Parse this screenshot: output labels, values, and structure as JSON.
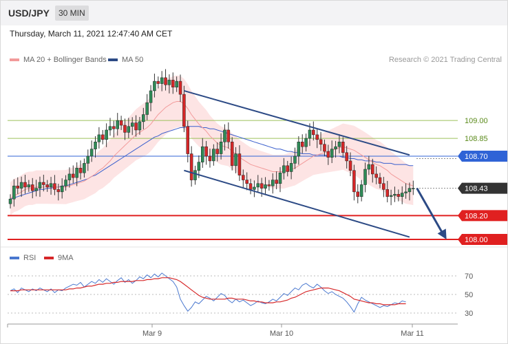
{
  "header": {
    "symbol": "USD/JPY",
    "period": "30 MIN",
    "datetime": "Thursday, March 11, 2021 12:47:40 AM CET"
  },
  "legend": {
    "ma20_label": "MA 20 + Bollinger Bands",
    "ma50_label": "MA 50",
    "credit": "Research © 2021 Trading Central"
  },
  "rsi_legend": {
    "rsi_label": "RSI",
    "ma_label": "9MA"
  },
  "colors": {
    "up": "#2e8b57",
    "down": "#d62728",
    "ma20": "#f29a9a",
    "ma50": "#3a5fcd",
    "bollinger": "#fde4e4",
    "channel": "#2c4a85",
    "support": "#e02020",
    "resistance": "#9cc05a",
    "pivot": "#2f63d6",
    "price_tag": "#333333",
    "rsi": "#4a78cf",
    "rsi_ma": "#d62728"
  },
  "chart_data": [
    {
      "type": "candlestick",
      "title": "USD/JPY 30 MIN",
      "x_ticks": [
        "Mar 9",
        "Mar 10",
        "Mar 11"
      ],
      "ylim": [
        107.8,
        109.5
      ],
      "levels": [
        {
          "label": "109.00",
          "value": 109.0,
          "kind": "resistance"
        },
        {
          "label": "108.85",
          "value": 108.85,
          "kind": "resistance"
        },
        {
          "label": "108.70",
          "value": 108.7,
          "kind": "pivot"
        },
        {
          "label": "108.43",
          "value": 108.43,
          "kind": "last_price"
        },
        {
          "label": "108.20",
          "value": 108.2,
          "kind": "support"
        },
        {
          "label": "108.00",
          "value": 108.0,
          "kind": "support"
        }
      ],
      "closes": [
        108.34,
        108.45,
        108.43,
        108.48,
        108.44,
        108.46,
        108.41,
        108.43,
        108.48,
        108.46,
        108.44,
        108.47,
        108.42,
        108.4,
        108.45,
        108.5,
        108.55,
        108.52,
        108.6,
        108.56,
        108.64,
        108.7,
        108.76,
        108.82,
        108.88,
        108.84,
        108.92,
        108.95,
        108.93,
        109.0,
        108.96,
        108.9,
        108.95,
        108.98,
        108.92,
        108.99,
        109.05,
        109.15,
        109.25,
        109.33,
        109.31,
        109.36,
        109.3,
        109.34,
        109.28,
        109.33,
        109.22,
        108.95,
        108.72,
        108.5,
        108.58,
        108.65,
        108.78,
        108.7,
        108.66,
        108.76,
        108.72,
        108.82,
        108.92,
        108.82,
        108.62,
        108.72,
        108.54,
        108.5,
        108.47,
        108.42,
        108.44,
        108.47,
        108.43,
        108.46,
        108.45,
        108.5,
        108.47,
        108.56,
        108.62,
        108.57,
        108.64,
        108.7,
        108.82,
        108.78,
        108.85,
        108.92,
        108.88,
        108.84,
        108.8,
        108.74,
        108.69,
        108.76,
        108.78,
        108.82,
        108.73,
        108.66,
        108.58,
        108.4,
        108.36,
        108.46,
        108.59,
        108.63,
        108.55,
        108.52,
        108.47,
        108.42,
        108.36,
        108.37,
        108.38,
        108.36,
        108.39,
        108.4,
        108.43,
        108.43
      ],
      "ma20": [
        108.34,
        108.37,
        108.38,
        108.4,
        108.42,
        108.43,
        108.43,
        108.44,
        108.44,
        108.44,
        108.44,
        108.44,
        108.44,
        108.44,
        108.44,
        108.44,
        108.45,
        108.46,
        108.47,
        108.48,
        108.49,
        108.51,
        108.53,
        108.55,
        108.58,
        108.6,
        108.63,
        108.66,
        108.7,
        108.73,
        108.76,
        108.79,
        108.82,
        108.85,
        108.88,
        108.9,
        108.92,
        108.94,
        108.97,
        109.01,
        109.05,
        109.08,
        109.11,
        109.13,
        109.15,
        109.16,
        109.16,
        109.14,
        109.1,
        109.05,
        109.01,
        108.97,
        108.94,
        108.91,
        108.87,
        108.84,
        108.81,
        108.79,
        108.78,
        108.77,
        108.74,
        108.72,
        108.69,
        108.67,
        108.65,
        108.63,
        108.62,
        108.61,
        108.6,
        108.59,
        108.58,
        108.57,
        108.57,
        108.57,
        108.57,
        108.58,
        108.59,
        108.6,
        108.62,
        108.64,
        108.66,
        108.68,
        108.7,
        108.71,
        108.72,
        108.73,
        108.74,
        108.75,
        108.76,
        108.77,
        108.78,
        108.77,
        108.76,
        108.75,
        108.73,
        108.71,
        108.69,
        108.67,
        108.65,
        108.63,
        108.62,
        108.6,
        108.58,
        108.55,
        108.53,
        108.51,
        108.49,
        108.47,
        108.46,
        108.45
      ],
      "ma50": [
        108.34,
        108.35,
        108.36,
        108.37,
        108.38,
        108.39,
        108.4,
        108.41,
        108.42,
        108.42,
        108.43,
        108.43,
        108.44,
        108.44,
        108.45,
        108.45,
        108.46,
        108.47,
        108.48,
        108.49,
        108.5,
        108.51,
        108.53,
        108.54,
        108.56,
        108.58,
        108.6,
        108.62,
        108.64,
        108.66,
        108.68,
        108.7,
        108.72,
        108.74,
        108.76,
        108.78,
        108.8,
        108.82,
        108.84,
        108.86,
        108.87,
        108.89,
        108.9,
        108.91,
        108.92,
        108.93,
        108.94,
        108.94,
        108.95,
        108.95,
        108.95,
        108.95,
        108.94,
        108.94,
        108.93,
        108.93,
        108.92,
        108.91,
        108.9,
        108.89,
        108.88,
        108.87,
        108.86,
        108.85,
        108.84,
        108.83,
        108.82,
        108.81,
        108.8,
        108.79,
        108.78,
        108.77,
        108.76,
        108.76,
        108.75,
        108.74,
        108.74,
        108.73,
        108.73,
        108.72,
        108.72,
        108.72,
        108.71,
        108.71,
        108.71,
        108.71,
        108.7,
        108.7,
        108.7,
        108.7,
        108.69,
        108.69,
        108.68,
        108.68,
        108.67,
        108.67,
        108.66,
        108.66,
        108.66,
        108.65,
        108.65,
        108.64,
        108.64,
        108.64,
        108.63,
        108.63,
        108.63,
        108.63,
        108.62,
        108.62
      ],
      "channel": [
        {
          "name": "upper",
          "from": [
            47,
            109.25
          ],
          "to": [
            108,
            108.71
          ]
        },
        {
          "name": "lower",
          "from": [
            47,
            108.58
          ],
          "to": [
            108,
            108.02
          ]
        }
      ],
      "projection": {
        "from": [
          110,
          108.43
        ],
        "to": [
          118,
          108.0
        ]
      }
    },
    {
      "type": "line",
      "title": "RSI",
      "ylim": [
        25,
        80
      ],
      "yticks": [
        30,
        50,
        70
      ],
      "series": [
        {
          "name": "RSI",
          "values": [
            54,
            56,
            52,
            57,
            55,
            53,
            56,
            54,
            57,
            55,
            53,
            56,
            52,
            55,
            54,
            57,
            59,
            61,
            60,
            63,
            58,
            61,
            64,
            62,
            66,
            63,
            67,
            64,
            61,
            65,
            68,
            63,
            66,
            62,
            65,
            69,
            67,
            71,
            68,
            72,
            69,
            73,
            70,
            67,
            64,
            58,
            45,
            38,
            32,
            36,
            42,
            40,
            44,
            48,
            46,
            43,
            47,
            51,
            49,
            44,
            41,
            45,
            42,
            44,
            41,
            38,
            40,
            43,
            41,
            40,
            42,
            45,
            43,
            47,
            51,
            49,
            53,
            57,
            55,
            60,
            62,
            59,
            57,
            61,
            58,
            54,
            51,
            53,
            50,
            48,
            46,
            42,
            37,
            31,
            40,
            47,
            44,
            42,
            40,
            38,
            36,
            38,
            37,
            39,
            41,
            40,
            43,
            42
          ]
        },
        {
          "name": "9MA",
          "values": [
            54,
            54,
            54,
            55,
            55,
            55,
            55,
            55,
            55,
            55,
            55,
            55,
            55,
            55,
            55,
            55,
            56,
            56,
            57,
            57,
            58,
            59,
            59,
            60,
            61,
            61,
            62,
            62,
            63,
            63,
            64,
            64,
            64,
            64,
            65,
            65,
            65,
            66,
            66,
            67,
            67,
            68,
            68,
            68,
            67,
            66,
            64,
            61,
            58,
            55,
            52,
            49,
            47,
            46,
            45,
            45,
            45,
            45,
            45,
            46,
            46,
            45,
            45,
            45,
            44,
            43,
            43,
            42,
            42,
            41,
            41,
            41,
            42,
            42,
            43,
            44,
            46,
            47,
            49,
            51,
            53,
            54,
            55,
            56,
            57,
            57,
            57,
            56,
            55,
            54,
            52,
            50,
            48,
            45,
            44,
            43,
            42,
            41,
            41,
            40,
            40,
            39,
            39,
            39,
            39,
            40,
            40,
            40
          ]
        }
      ]
    }
  ]
}
